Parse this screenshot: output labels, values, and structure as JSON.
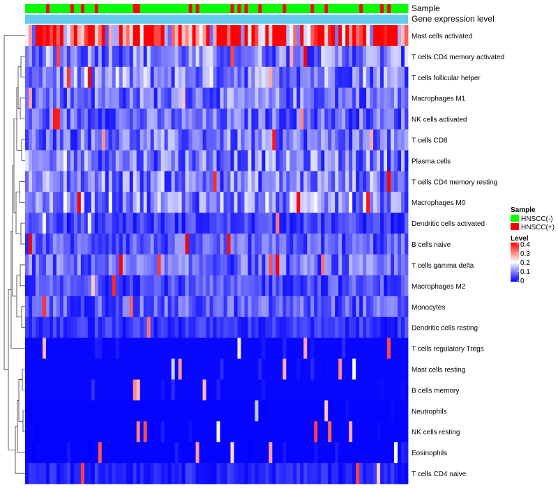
{
  "chart_data": {
    "type": "heatmap",
    "annotation_tracks": [
      "Sample",
      "Gene expression level"
    ],
    "rows": [
      "Mast cells activated",
      "T cells CD4 memory activated",
      "T cells follicular helper",
      "Macrophages M1",
      "NK cells activated",
      "T cells CD8",
      "Plasma cells",
      "T cells CD4 memory resting",
      "Macrophages M0",
      "Dendritic cells activated",
      "B cells naive",
      "T cells gamma delta",
      "Macrophages M2",
      "Monocytes",
      "Dendritic cells resting",
      "T cells regulatory  Tregs",
      "Mast cells resting",
      "B cells memory",
      "Neutrophils",
      "NK cells resting",
      "Eosinophils",
      "T cells CD4 naive"
    ],
    "row_mean_levels": [
      0.33,
      0.1,
      0.11,
      0.09,
      0.08,
      0.09,
      0.1,
      0.1,
      0.11,
      0.05,
      0.07,
      0.08,
      0.06,
      0.07,
      0.04,
      0.02,
      0.02,
      0.02,
      0.01,
      0.01,
      0.01,
      0.03
    ],
    "n_samples": 110,
    "sample_fraction_positive": 0.22,
    "color_scale": {
      "min": 0,
      "max": 0.4,
      "low_color": "#0000ff",
      "mid_color": "#ffffff",
      "high_color": "#ff0000",
      "midpoint": 0.2
    },
    "legend": {
      "sample_title": "Sample",
      "sample_items": [
        {
          "label": "HNSCC(-)",
          "color": "#00ff00"
        },
        {
          "label": "HNSCC(+)",
          "color": "#ff0000"
        }
      ],
      "level_title": "Level",
      "level_ticks": [
        "0.4",
        "0.3",
        "0.2",
        "0.1",
        "0"
      ]
    },
    "expression_track_color": "#66ccee"
  }
}
